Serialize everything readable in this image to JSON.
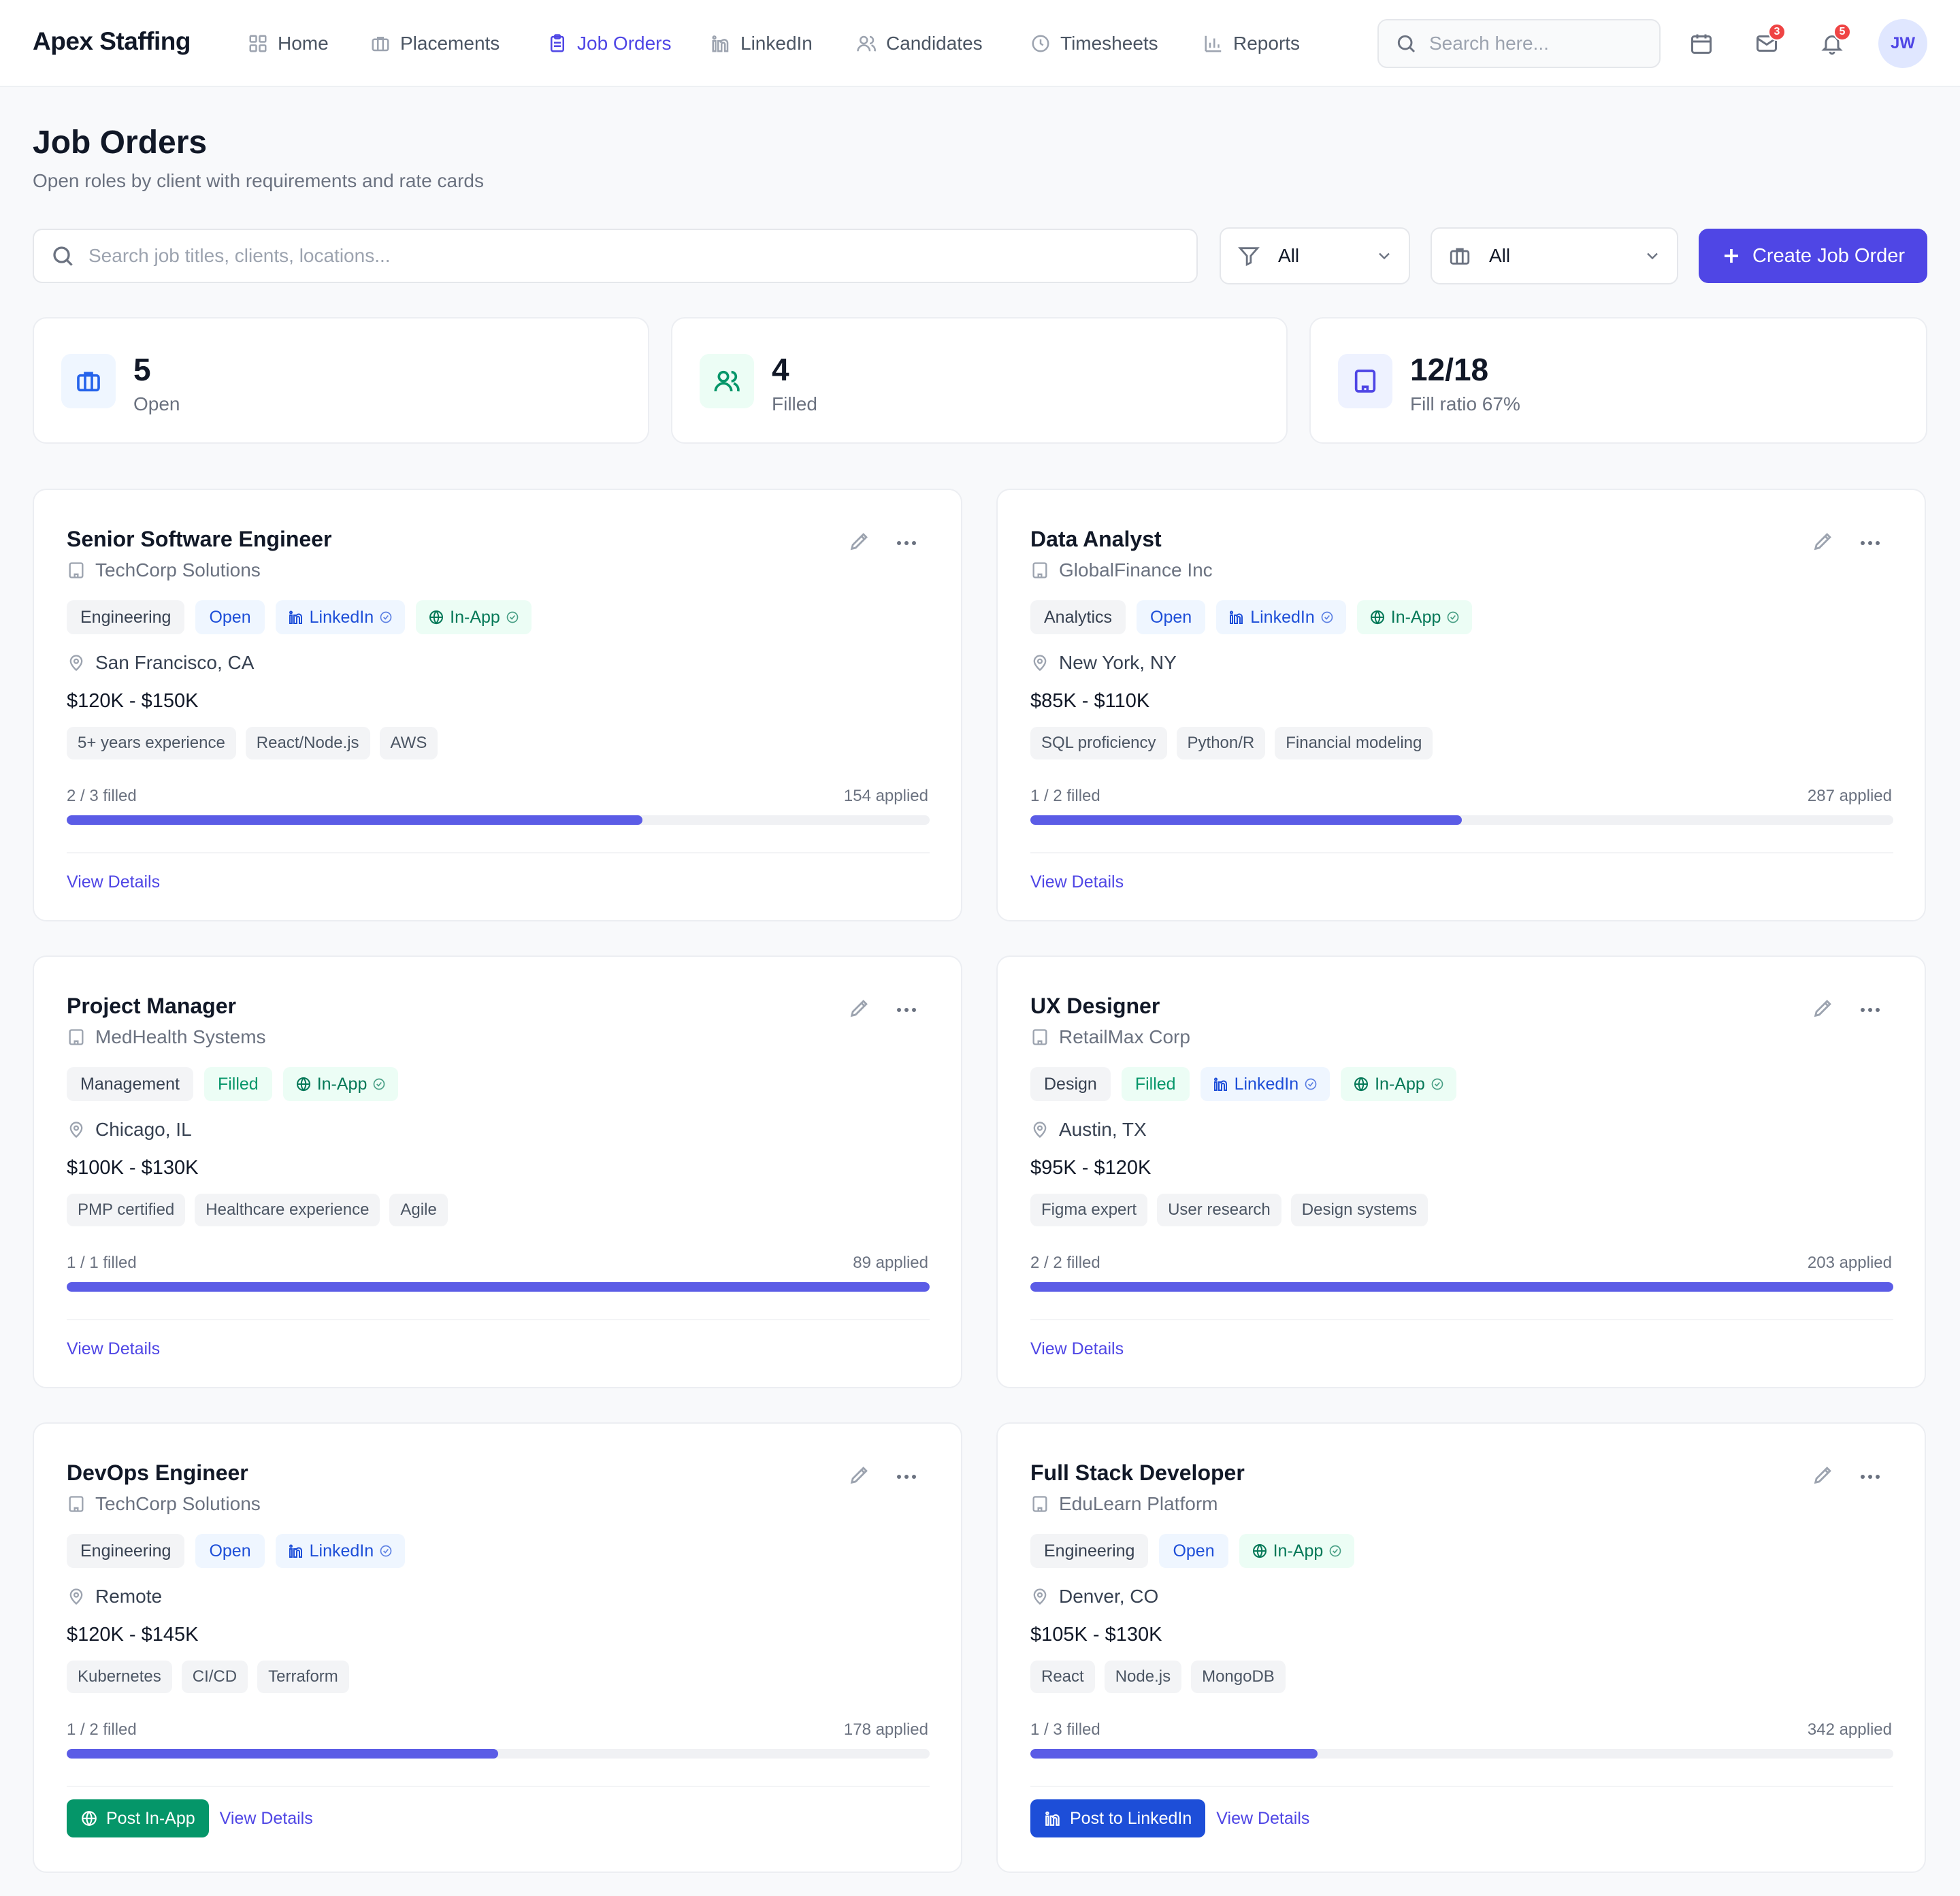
{
  "app": {
    "name": "Apex Staffing"
  },
  "nav": [
    {
      "label": "Home",
      "icon": "grid-icon",
      "active": false
    },
    {
      "label": "Placements",
      "icon": "briefcase-icon",
      "active": false
    },
    {
      "label": "Job Orders",
      "icon": "clipboard-icon",
      "active": true
    },
    {
      "label": "LinkedIn",
      "icon": "linkedin-icon",
      "active": false
    },
    {
      "label": "Candidates",
      "icon": "users-icon",
      "active": false
    },
    {
      "label": "Timesheets",
      "icon": "clock-icon",
      "active": false
    },
    {
      "label": "Reports",
      "icon": "bar-chart-icon",
      "active": false
    }
  ],
  "header": {
    "search_placeholder": "Search here...",
    "mail_badge": "3",
    "bell_badge": "5",
    "avatar_initials": "JW"
  },
  "page": {
    "title": "Job Orders",
    "subtitle": "Open roles by client with requirements and rate cards"
  },
  "filters": {
    "search_placeholder": "Search job titles, clients, locations...",
    "status_value": "All",
    "client_value": "All",
    "create_label": "Create Job Order"
  },
  "stats": [
    {
      "value": "5",
      "label": "Open",
      "icon": "briefcase-icon",
      "color": "#2563eb",
      "bg": "#eff6ff"
    },
    {
      "value": "4",
      "label": "Filled",
      "icon": "users-icon",
      "color": "#059669",
      "bg": "#ecfdf5"
    },
    {
      "value": "12/18",
      "label": "Fill ratio 67%",
      "icon": "building-icon",
      "color": "#4f46e5",
      "bg": "#eef2ff"
    }
  ],
  "jobs": [
    {
      "title": "Senior Software Engineer",
      "client": "TechCorp Solutions",
      "category": "Engineering",
      "status": "Open",
      "linkedin": true,
      "inapp": true,
      "location": "San Francisco, CA",
      "salary": "$120K - $150K",
      "requirements": [
        "5+ years experience",
        "React/Node.js",
        "AWS"
      ],
      "filled_text": "2 / 3 filled",
      "fill_fraction": 0.667,
      "applied": "154 applied",
      "post_button": null,
      "view_label": "View Details"
    },
    {
      "title": "Data Analyst",
      "client": "GlobalFinance Inc",
      "category": "Analytics",
      "status": "Open",
      "linkedin": true,
      "inapp": true,
      "location": "New York, NY",
      "salary": "$85K - $110K",
      "requirements": [
        "SQL proficiency",
        "Python/R",
        "Financial modeling"
      ],
      "filled_text": "1 / 2 filled",
      "fill_fraction": 0.5,
      "applied": "287 applied",
      "post_button": null,
      "view_label": "View Details"
    },
    {
      "title": "Project Manager",
      "client": "MedHealth Systems",
      "category": "Management",
      "status": "Filled",
      "linkedin": false,
      "inapp": true,
      "location": "Chicago, IL",
      "salary": "$100K - $130K",
      "requirements": [
        "PMP certified",
        "Healthcare experience",
        "Agile"
      ],
      "filled_text": "1 / 1 filled",
      "fill_fraction": 1.0,
      "applied": "89 applied",
      "post_button": null,
      "view_label": "View Details"
    },
    {
      "title": "UX Designer",
      "client": "RetailMax Corp",
      "category": "Design",
      "status": "Filled",
      "linkedin": true,
      "inapp": true,
      "location": "Austin, TX",
      "salary": "$95K - $120K",
      "requirements": [
        "Figma expert",
        "User research",
        "Design systems"
      ],
      "filled_text": "2 / 2 filled",
      "fill_fraction": 1.0,
      "applied": "203 applied",
      "post_button": null,
      "view_label": "View Details"
    },
    {
      "title": "DevOps Engineer",
      "client": "TechCorp Solutions",
      "category": "Engineering",
      "status": "Open",
      "linkedin": true,
      "inapp": false,
      "location": "Remote",
      "salary": "$120K - $145K",
      "requirements": [
        "Kubernetes",
        "CI/CD",
        "Terraform"
      ],
      "filled_text": "1 / 2 filled",
      "fill_fraction": 0.5,
      "applied": "178 applied",
      "post_button": {
        "label": "Post In-App",
        "kind": "inapp"
      },
      "view_label": "View Details"
    },
    {
      "title": "Full Stack Developer",
      "client": "EduLearn Platform",
      "category": "Engineering",
      "status": "Open",
      "linkedin": false,
      "inapp": true,
      "location": "Denver, CO",
      "salary": "$105K - $130K",
      "requirements": [
        "React",
        "Node.js",
        "MongoDB"
      ],
      "filled_text": "1 / 3 filled",
      "fill_fraction": 0.333,
      "applied": "342 applied",
      "post_button": {
        "label": "Post to LinkedIn",
        "kind": "linkedin"
      },
      "view_label": "View Details"
    }
  ],
  "tag_labels": {
    "linkedin": "LinkedIn",
    "inapp": "In-App"
  }
}
